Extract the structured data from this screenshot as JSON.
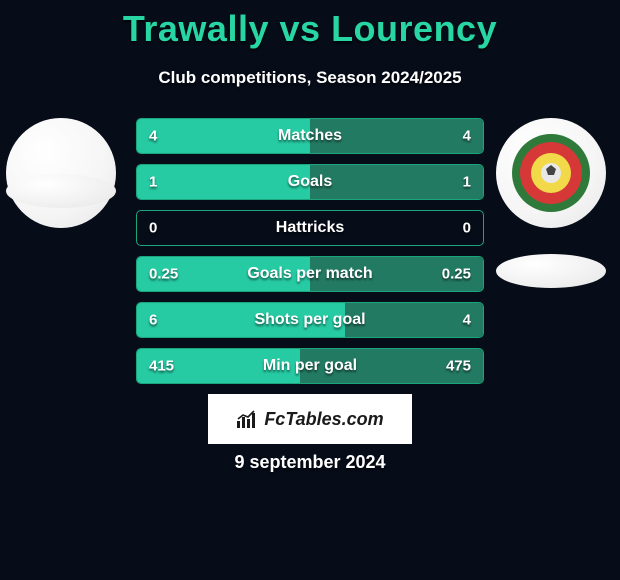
{
  "title_left": "Trawally",
  "title_vs": "vs",
  "title_right": "Lourency",
  "subtitle": "Club competitions, Season 2024/2025",
  "date": "9 september 2024",
  "brand": "FcTables.com",
  "colors": {
    "accent": "#27d6a2",
    "border": "#1aa57a",
    "fill_left": "#26caa3",
    "fill_right": "#237a63",
    "background": "#060c18",
    "white": "#ffffff"
  },
  "crest": {
    "outer_ring": "#2f7a3a",
    "inner_ring": "#d63838",
    "center": "#f2d94a",
    "ball": "#e8e8e8"
  },
  "stats": [
    {
      "label": "Matches",
      "left_val": "4",
      "right_val": "4",
      "left_pct": 50,
      "right_pct": 50
    },
    {
      "label": "Goals",
      "left_val": "1",
      "right_val": "1",
      "left_pct": 50,
      "right_pct": 50
    },
    {
      "label": "Hattricks",
      "left_val": "0",
      "right_val": "0",
      "left_pct": 0,
      "right_pct": 0
    },
    {
      "label": "Goals per match",
      "left_val": "0.25",
      "right_val": "0.25",
      "left_pct": 50,
      "right_pct": 50
    },
    {
      "label": "Shots per goal",
      "left_val": "6",
      "right_val": "4",
      "left_pct": 60,
      "right_pct": 40
    },
    {
      "label": "Min per goal",
      "left_val": "415",
      "right_val": "475",
      "left_pct": 47,
      "right_pct": 53
    }
  ]
}
